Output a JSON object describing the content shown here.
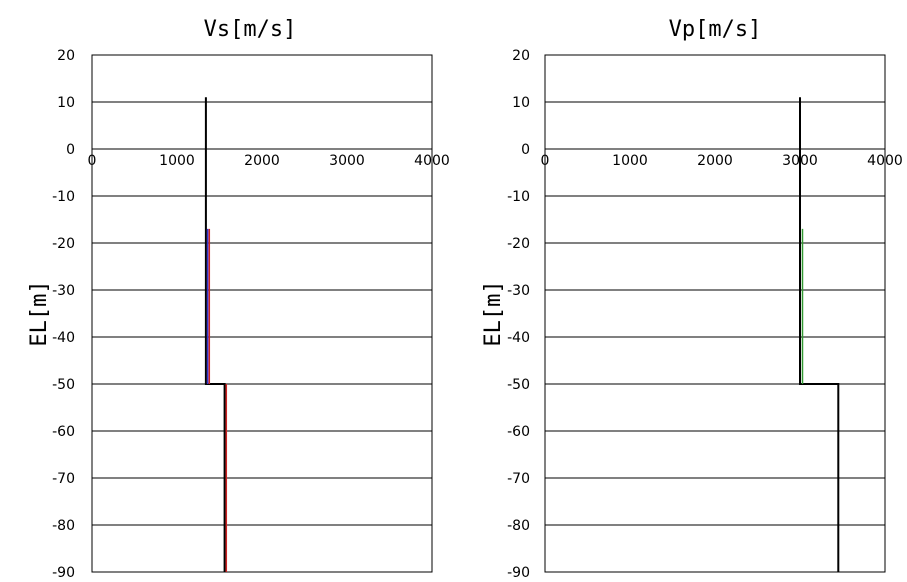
{
  "chart_data": [
    {
      "type": "line",
      "title": "Vs[m/s]",
      "xlabel": "",
      "ylabel": "EL[m]",
      "xlim": [
        0,
        4000
      ],
      "ylim": [
        -90,
        20
      ],
      "x_ticks": [
        "0",
        "1000",
        "2000",
        "3000",
        "4000"
      ],
      "y_ticks": [
        "20",
        "10",
        "0",
        "-10",
        "-20",
        "-30",
        "-40",
        "-50",
        "-60",
        "-70",
        "-80",
        "-90"
      ],
      "grid": "horizontal",
      "series": [
        {
          "color": "#000000",
          "points": [
            [
              1340,
              11
            ],
            [
              1340,
              -50
            ],
            [
              1560,
              -50
            ],
            [
              1560,
              -90
            ]
          ]
        },
        {
          "color": "#3333cc",
          "points": [
            [
              1360,
              -17
            ],
            [
              1360,
              -50
            ]
          ]
        },
        {
          "color": "#cc2222",
          "points": [
            [
              1380,
              -17
            ],
            [
              1380,
              -50
            ]
          ]
        },
        {
          "color": "#cc2222",
          "points": [
            [
              1580,
              -50
            ],
            [
              1580,
              -90
            ]
          ]
        }
      ]
    },
    {
      "type": "line",
      "title": "Vp[m/s]",
      "xlabel": "",
      "ylabel": "EL[m]",
      "xlim": [
        0,
        4000
      ],
      "ylim": [
        -90,
        20
      ],
      "x_ticks": [
        "0",
        "1000",
        "2000",
        "3000",
        "4000"
      ],
      "y_ticks": [
        "20",
        "10",
        "0",
        "-10",
        "-20",
        "-30",
        "-40",
        "-50",
        "-60",
        "-70",
        "-80",
        "-90"
      ],
      "grid": "horizontal",
      "series": [
        {
          "color": "#000000",
          "points": [
            [
              3000,
              11
            ],
            [
              3000,
              -50
            ],
            [
              3450,
              -50
            ],
            [
              3450,
              -90
            ]
          ]
        },
        {
          "color": "#339933",
          "points": [
            [
              3030,
              -17
            ],
            [
              3030,
              -50
            ]
          ]
        }
      ]
    }
  ]
}
